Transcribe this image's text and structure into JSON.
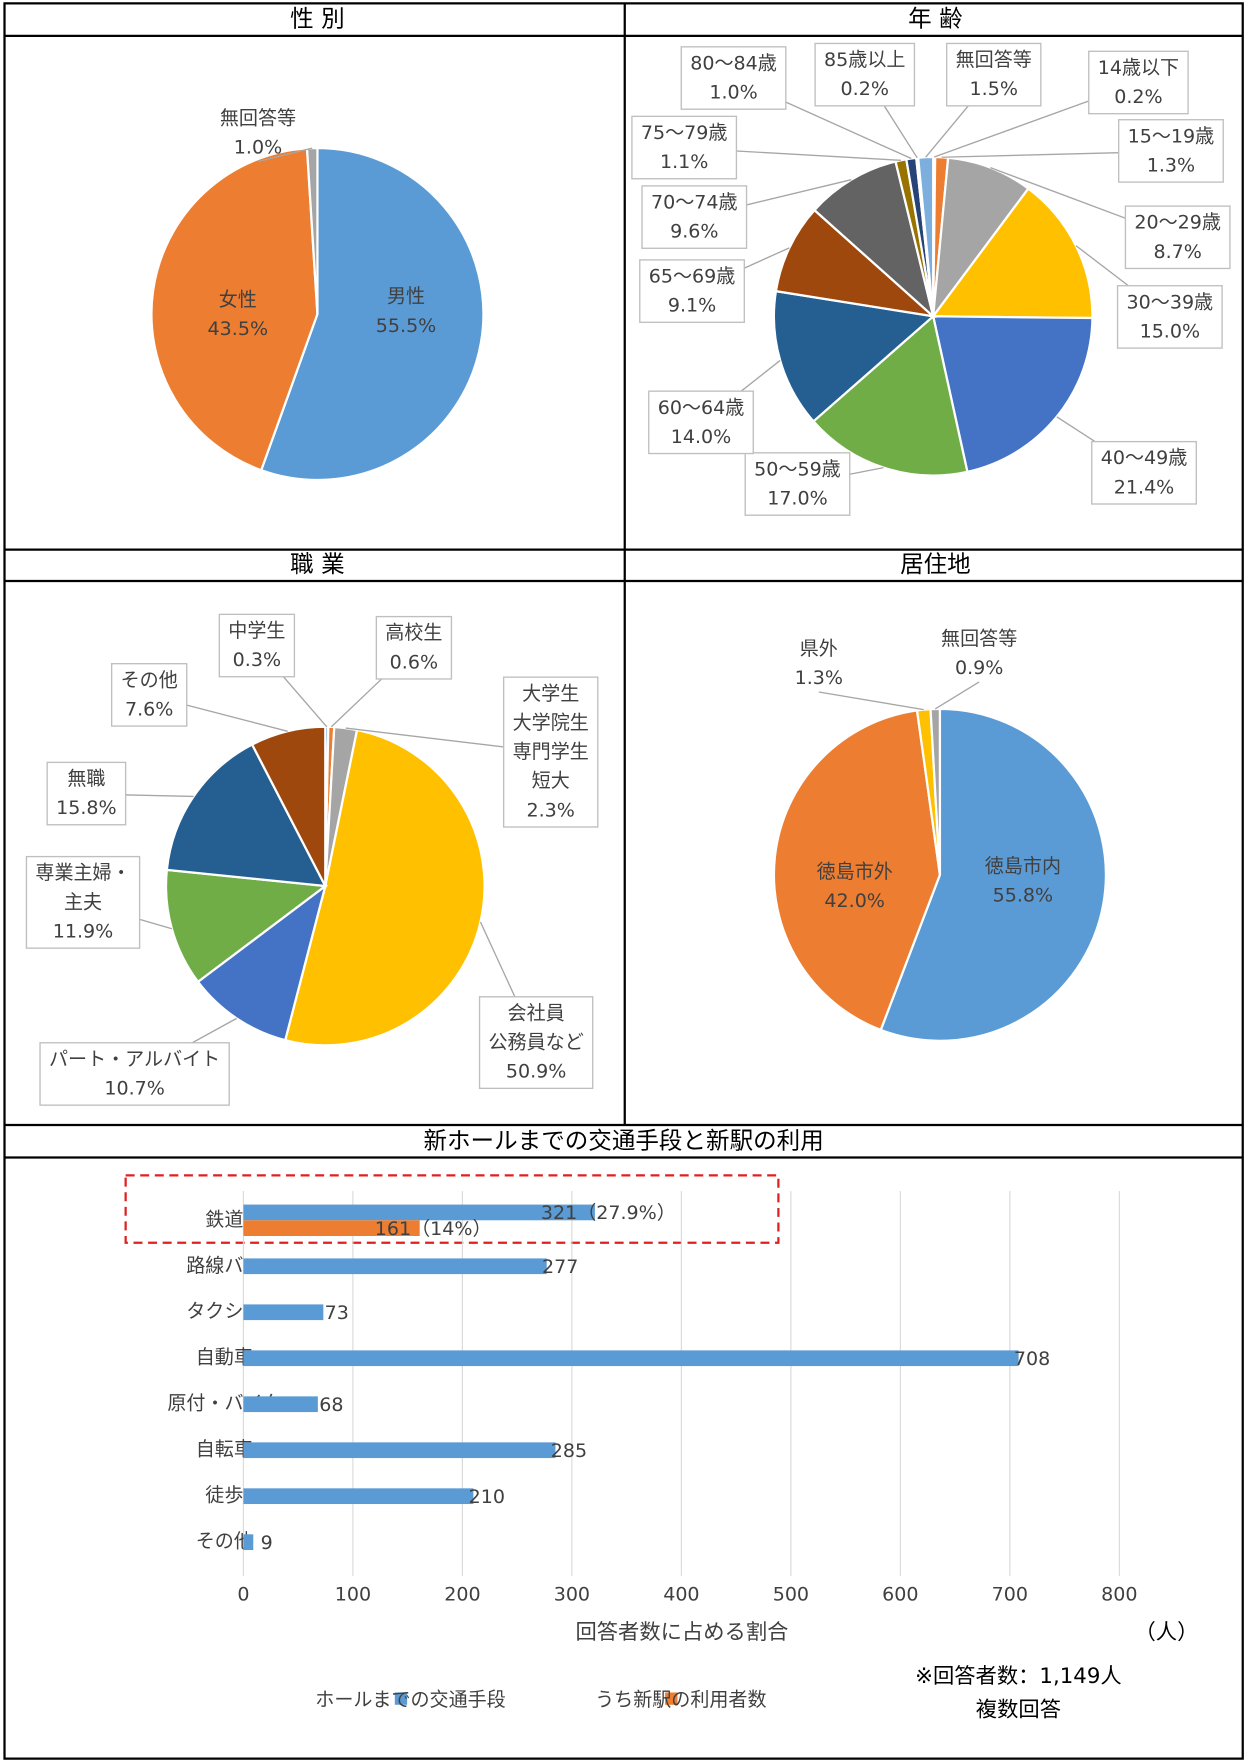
{
  "chart_data": [
    {
      "type": "pie",
      "title": "性 別",
      "categories": [
        "男性",
        "女性",
        "無回答等"
      ],
      "values": [
        55.5,
        43.5,
        1.0
      ],
      "value_labels": [
        "55.5%",
        "43.5%",
        "1.0%"
      ],
      "colors": [
        "#5b9bd5",
        "#ed7d31",
        "#a5a5a5"
      ]
    },
    {
      "type": "pie",
      "title": "年 齢",
      "categories": [
        "14歳以下",
        "15～19歳",
        "20～29歳",
        "30～39歳",
        "40～49歳",
        "50～59歳",
        "60～64歳",
        "65～69歳",
        "70～74歳",
        "75～79歳",
        "80～84歳",
        "85歳以上",
        "無回答等"
      ],
      "values": [
        0.2,
        1.3,
        8.7,
        15.0,
        21.4,
        17.0,
        14.0,
        9.1,
        9.6,
        1.1,
        1.0,
        0.2,
        1.5
      ],
      "value_labels": [
        "0.2%",
        "1.3%",
        "8.7%",
        "15.0%",
        "21.4%",
        "17.0%",
        "14.0%",
        "9.1%",
        "9.6%",
        "1.1%",
        "1.0%",
        "0.2%",
        "1.5%"
      ],
      "colors": [
        "#5b9bd5",
        "#ed7d31",
        "#a5a5a5",
        "#ffc000",
        "#4472c4",
        "#70ad47",
        "#255e91",
        "#9e480e",
        "#636363",
        "#997300",
        "#264478",
        "#43682b",
        "#7cafdd"
      ]
    },
    {
      "type": "pie",
      "title": "職 業",
      "categories": [
        "中学生",
        "高校生",
        [
          "大学生",
          "大学院生",
          "専門学生",
          "短大"
        ],
        [
          "会社員",
          "公務員など"
        ],
        "パート・アルバイト",
        [
          "専業主婦・",
          "主夫"
        ],
        "無職",
        "その他"
      ],
      "values": [
        0.3,
        0.6,
        2.3,
        50.9,
        10.7,
        11.9,
        15.8,
        7.6
      ],
      "value_labels": [
        "0.3%",
        "0.6%",
        "2.3%",
        "50.9%",
        "10.7%",
        "11.9%",
        "15.8%",
        "7.6%"
      ],
      "colors": [
        "#5b9bd5",
        "#ed7d31",
        "#a5a5a5",
        "#ffc000",
        "#4472c4",
        "#70ad47",
        "#255e91",
        "#9e480e"
      ]
    },
    {
      "type": "pie",
      "title": "居住地",
      "categories": [
        "徳島市内",
        "徳島市外",
        "県外",
        "無回答等"
      ],
      "values": [
        55.8,
        42.0,
        1.3,
        0.9
      ],
      "value_labels": [
        "55.8%",
        "42.0%",
        "1.3%",
        "0.9%"
      ],
      "colors": [
        "#5b9bd5",
        "#ed7d31",
        "#ffc000",
        "#a5a5a5"
      ]
    },
    {
      "type": "bar",
      "orientation": "horizontal",
      "title": "新ホールまでの交通手段と新駅の利用",
      "categories": [
        "鉄道",
        "路線バス",
        "タクシー",
        "自動車",
        "原付・バイク",
        "自転車",
        "徒歩",
        "その他"
      ],
      "series": [
        {
          "name": "ホールまでの交通手段",
          "color": "#5b9bd5",
          "values": [
            321,
            277,
            73,
            708,
            68,
            285,
            210,
            9
          ],
          "value_labels": [
            "321（27.9%）",
            "277",
            "73",
            "708",
            "68",
            "285",
            "210",
            "9"
          ]
        },
        {
          "name": "うち新駅の利用者数",
          "color": "#ed7d31",
          "values": [
            161,
            null,
            null,
            null,
            null,
            null,
            null,
            null
          ],
          "value_labels": [
            "161（14%）",
            null,
            null,
            null,
            null,
            null,
            null,
            null
          ]
        }
      ],
      "xlim": [
        0,
        800
      ],
      "xticks": [
        0,
        100,
        200,
        300,
        400,
        500,
        600,
        700,
        800
      ],
      "grid": true,
      "xlabel": "回答者数に占める割合",
      "unit_label": "（人）",
      "notes": [
        "※回答者数：1,149人",
        "複数回答"
      ]
    }
  ]
}
